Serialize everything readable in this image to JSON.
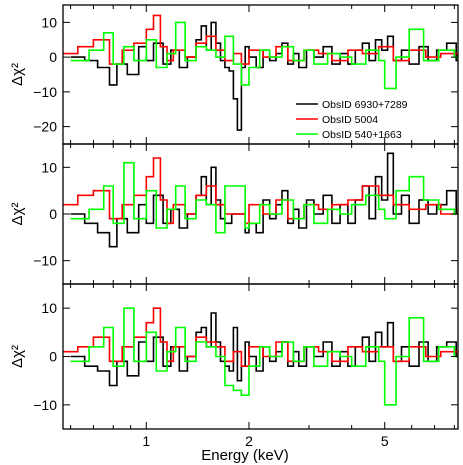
{
  "chart_data": {
    "type": "line",
    "x_scale": "log",
    "xlabel": "Energy (keV)",
    "ylabel": "Δχ²",
    "xlim": [
      0.57,
      8.2
    ],
    "x_ticks": [
      1,
      2,
      5
    ],
    "x_tick_labels": [
      "1",
      "2",
      "5"
    ],
    "legend": {
      "location": "lower-right of top panel",
      "entries": [
        {
          "label": "ObsID 6930+7289",
          "color": "#000000"
        },
        {
          "label": "ObsID 5004",
          "color": "#ff0000"
        },
        {
          "label": "ObsID 540+1663",
          "color": "#00ff00"
        }
      ]
    },
    "panels": [
      {
        "ylim": [
          -25,
          15
        ],
        "y_ticks": [
          -20,
          -10,
          0,
          10
        ],
        "y_tick_labels": [
          "−20",
          "−10",
          "0",
          "10"
        ],
        "series": [
          {
            "name": "ObsID 6930+7289",
            "color": "#000000",
            "x": [
              0.6,
              0.66,
              0.72,
              0.78,
              0.82,
              0.88,
              0.95,
              1.0,
              1.05,
              1.12,
              1.18,
              1.25,
              1.32,
              1.4,
              1.45,
              1.5,
              1.55,
              1.6,
              1.65,
              1.7,
              1.75,
              1.8,
              1.85,
              1.9,
              1.95,
              2.0,
              2.1,
              2.2,
              2.3,
              2.4,
              2.5,
              2.6,
              2.7,
              2.8,
              2.95,
              3.1,
              3.3,
              3.5,
              3.7,
              3.9,
              4.1,
              4.3,
              4.5,
              4.7,
              4.9,
              5.1,
              5.3,
              5.6,
              5.9,
              6.3,
              6.7,
              7.1,
              7.6,
              8.1
            ],
            "y": [
              0,
              -1,
              -3,
              -8,
              -2,
              -5,
              3,
              -1,
              4,
              -2,
              2,
              -3,
              0,
              5,
              9,
              2,
              10,
              4,
              -1,
              -3,
              -4,
              -12,
              -21,
              -3,
              3,
              0,
              -3,
              2,
              -1,
              1,
              4,
              -2,
              1,
              -3,
              2,
              0,
              3,
              -2,
              1,
              -2,
              2,
              4,
              -1,
              5,
              2,
              6,
              -1,
              2,
              -2,
              3,
              -1,
              2,
              4,
              -1
            ]
          },
          {
            "name": "ObsID 5004",
            "color": "#ff0000",
            "x": [
              0.57,
              0.63,
              0.7,
              0.78,
              0.85,
              0.92,
              1.0,
              1.05,
              1.1,
              1.15,
              1.2,
              1.3,
              1.4,
              1.5,
              1.6,
              1.7,
              1.8,
              1.9,
              2.0,
              2.2,
              2.4,
              2.6,
              2.9,
              3.2,
              3.5,
              3.9,
              4.3,
              4.8,
              5.3,
              5.9,
              6.6,
              7.3,
              8.2
            ],
            "y": [
              1,
              3,
              5,
              -2,
              2,
              4,
              8,
              12,
              3,
              -1,
              2,
              0,
              4,
              6,
              2,
              -1,
              1,
              -2,
              2,
              0,
              3,
              -1,
              2,
              1,
              -1,
              2,
              1,
              3,
              -1,
              2,
              0,
              1,
              0
            ]
          },
          {
            "name": "ObsID 540+1663",
            "color": "#00ff00",
            "x": [
              0.6,
              0.68,
              0.75,
              0.8,
              0.86,
              0.92,
              1.0,
              1.07,
              1.15,
              1.22,
              1.3,
              1.4,
              1.5,
              1.6,
              1.7,
              1.8,
              1.9,
              2.0,
              2.15,
              2.3,
              2.5,
              2.7,
              2.9,
              3.1,
              3.4,
              3.7,
              4.0,
              4.4,
              4.8,
              5.0,
              5.4,
              5.9,
              6.5,
              7.2,
              8.0
            ],
            "y": [
              -1,
              2,
              7,
              -2,
              3,
              -1,
              5,
              -3,
              1,
              10,
              -1,
              3,
              2,
              0,
              6,
              -2,
              -8,
              -3,
              2,
              0,
              3,
              -1,
              2,
              -2,
              1,
              0,
              -2,
              2,
              -1,
              -9,
              0,
              8,
              -1,
              2,
              0
            ]
          }
        ]
      },
      {
        "ylim": [
          -15,
          15
        ],
        "y_ticks": [
          -10,
          0,
          10
        ],
        "y_tick_labels": [
          "−10",
          "0",
          "10"
        ],
        "series": [
          {
            "name": "ObsID 6930+7289",
            "color": "#000000",
            "x": [
              0.6,
              0.66,
              0.72,
              0.78,
              0.82,
              0.88,
              0.95,
              1.0,
              1.05,
              1.12,
              1.18,
              1.25,
              1.32,
              1.4,
              1.45,
              1.5,
              1.55,
              1.6,
              1.65,
              1.7,
              1.78,
              1.95,
              2.0,
              2.1,
              2.2,
              2.3,
              2.4,
              2.5,
              2.6,
              2.7,
              2.8,
              2.95,
              3.1,
              3.3,
              3.5,
              3.7,
              3.9,
              4.1,
              4.3,
              4.5,
              4.7,
              4.9,
              5.1,
              5.3,
              5.6,
              5.9,
              6.3,
              6.7,
              7.1,
              7.6,
              8.1
            ],
            "y": [
              0,
              -2,
              -4,
              -7,
              -1,
              -4,
              2,
              -2,
              4,
              -2,
              1,
              -3,
              0,
              4,
              8,
              2,
              10,
              3,
              -1,
              -2,
              0,
              -4,
              -2,
              -4,
              3,
              -1,
              2,
              5,
              -2,
              1,
              -3,
              3,
              0,
              4,
              -2,
              2,
              -2,
              3,
              6,
              -1,
              8,
              3,
              13,
              0,
              4,
              -2,
              3,
              0,
              2,
              5,
              0
            ]
          },
          {
            "name": "ObsID 5004",
            "color": "#ff0000",
            "x": [
              0.57,
              0.63,
              0.7,
              0.78,
              0.85,
              0.92,
              1.0,
              1.05,
              1.1,
              1.15,
              1.2,
              1.3,
              1.4,
              1.5,
              1.6,
              1.7,
              1.95,
              2.0,
              2.2,
              2.4,
              2.6,
              2.9,
              3.2,
              3.5,
              3.9,
              4.3,
              4.8,
              5.3,
              5.9,
              6.6,
              7.3,
              8.2
            ],
            "y": [
              2,
              4,
              5,
              -1,
              2,
              4,
              8,
              12,
              3,
              -2,
              2,
              0,
              4,
              6,
              2,
              0,
              -2,
              2,
              0,
              3,
              -1,
              2,
              1,
              2,
              3,
              6,
              4,
              2,
              1,
              2,
              0,
              1
            ]
          },
          {
            "name": "ObsID 540+1663",
            "color": "#00ff00",
            "x": [
              0.6,
              0.68,
              0.75,
              0.8,
              0.86,
              0.92,
              1.0,
              1.07,
              1.15,
              1.22,
              1.3,
              1.4,
              1.5,
              1.6,
              1.7,
              1.95,
              2.0,
              2.15,
              2.3,
              2.5,
              2.7,
              2.9,
              3.1,
              3.4,
              3.7,
              4.0,
              4.4,
              4.8,
              5.0,
              5.4,
              5.9,
              6.5,
              7.2,
              8.0
            ],
            "y": [
              -1,
              1,
              6,
              -2,
              11,
              -1,
              5,
              -3,
              1,
              6,
              -1,
              3,
              2,
              -4,
              6,
              -3,
              -2,
              2,
              0,
              3,
              -1,
              2,
              -2,
              1,
              0,
              2,
              4,
              1,
              -1,
              5,
              8,
              3,
              1,
              0
            ]
          }
        ]
      },
      {
        "ylim": [
          -15,
          15
        ],
        "y_ticks": [
          -10,
          0,
          10
        ],
        "y_tick_labels": [
          "−10",
          "0",
          "10"
        ],
        "series": [
          {
            "name": "ObsID 6930+7289",
            "color": "#000000",
            "x": [
              0.6,
              0.66,
              0.72,
              0.78,
              0.82,
              0.88,
              0.95,
              1.0,
              1.05,
              1.12,
              1.18,
              1.25,
              1.32,
              1.4,
              1.45,
              1.5,
              1.55,
              1.6,
              1.65,
              1.7,
              1.75,
              1.8,
              1.85,
              1.9,
              1.95,
              2.0,
              2.1,
              2.2,
              2.3,
              2.4,
              2.5,
              2.6,
              2.7,
              2.8,
              2.95,
              3.1,
              3.3,
              3.5,
              3.7,
              3.9,
              4.1,
              4.3,
              4.5,
              4.7,
              4.9,
              5.1,
              5.3,
              5.6,
              5.9,
              6.3,
              6.7,
              7.1,
              7.6,
              8.1
            ],
            "y": [
              0,
              -2,
              -3,
              -6,
              -1,
              -4,
              3,
              -1,
              4,
              -2,
              2,
              -3,
              0,
              5,
              6,
              2,
              9,
              3,
              -1,
              -2,
              -3,
              6,
              -5,
              -2,
              3,
              0,
              -3,
              2,
              -1,
              1,
              3,
              -2,
              1,
              -2,
              2,
              0,
              3,
              -2,
              1,
              -2,
              2,
              4,
              -1,
              5,
              2,
              7,
              -1,
              2,
              -2,
              3,
              -1,
              2,
              3,
              0
            ]
          },
          {
            "name": "ObsID 5004",
            "color": "#ff0000",
            "x": [
              0.57,
              0.63,
              0.7,
              0.78,
              0.85,
              0.92,
              1.0,
              1.05,
              1.1,
              1.15,
              1.2,
              1.3,
              1.4,
              1.5,
              1.6,
              1.7,
              1.8,
              1.9,
              2.0,
              2.2,
              2.4,
              2.6,
              2.9,
              3.2,
              3.5,
              3.9,
              4.3,
              4.8,
              5.3,
              5.9,
              6.6,
              7.3,
              8.2
            ],
            "y": [
              1,
              2,
              4,
              -1,
              2,
              4,
              7,
              10,
              3,
              -1,
              2,
              0,
              4,
              3,
              2,
              -1,
              1,
              -2,
              2,
              0,
              3,
              -1,
              2,
              1,
              -1,
              2,
              1,
              2,
              -1,
              2,
              0,
              1,
              0
            ]
          },
          {
            "name": "ObsID 540+1663",
            "color": "#00ff00",
            "x": [
              0.6,
              0.68,
              0.75,
              0.8,
              0.86,
              0.92,
              1.0,
              1.07,
              1.15,
              1.22,
              1.3,
              1.4,
              1.5,
              1.6,
              1.7,
              1.8,
              1.9,
              2.0,
              2.15,
              2.3,
              2.5,
              2.7,
              2.9,
              3.1,
              3.4,
              3.7,
              4.0,
              4.4,
              4.8,
              5.0,
              5.4,
              5.9,
              6.5,
              7.2,
              8.0
            ],
            "y": [
              -1,
              2,
              6,
              -2,
              10,
              -1,
              5,
              -3,
              1,
              6,
              -1,
              3,
              2,
              0,
              -6,
              -7,
              -8,
              -2,
              2,
              0,
              3,
              -1,
              2,
              -2,
              1,
              0,
              -2,
              2,
              -1,
              -10,
              0,
              8,
              -1,
              2,
              0
            ]
          }
        ]
      }
    ]
  }
}
